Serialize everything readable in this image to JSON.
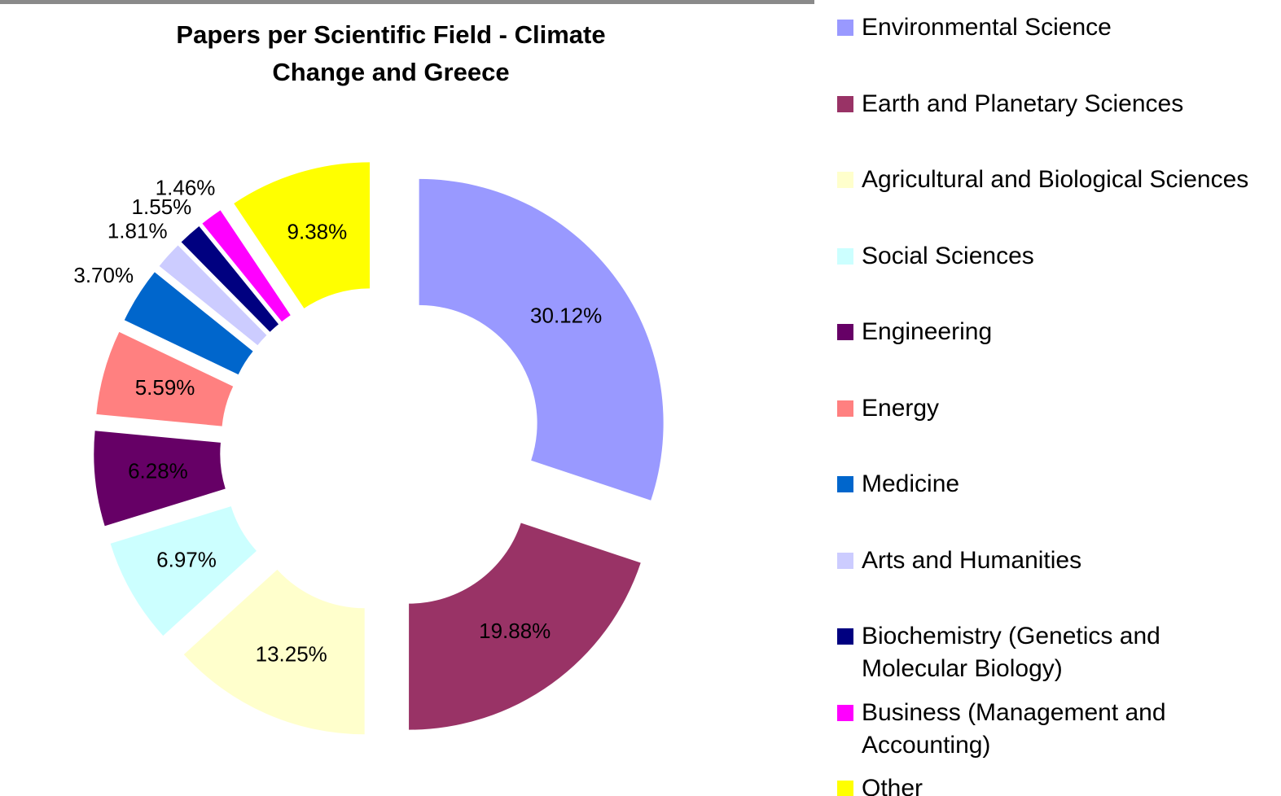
{
  "chart_data": {
    "type": "donut",
    "title": "Papers per Scientific Field - Climate Change and Greece",
    "categories": [
      "Environmental Science",
      "Earth and Planetary Sciences",
      "Agricultural and Biological Sciences",
      "Social Sciences",
      "Engineering",
      "Energy",
      "Medicine",
      "Arts and Humanities",
      "Biochemistry (Genetics and Molecular Biology)",
      "Business (Management and Accounting)",
      "Other"
    ],
    "values": [
      30.12,
      19.88,
      13.25,
      6.97,
      6.28,
      5.59,
      3.7,
      1.81,
      1.55,
      1.46,
      9.38
    ],
    "value_labels": [
      "30.12%",
      "19.88%",
      "13.25%",
      "6.97%",
      "6.28%",
      "5.59%",
      "3.70%",
      "1.81%",
      "1.55%",
      "1.46%",
      "9.38%"
    ],
    "colors": [
      "#9999ff",
      "#993366",
      "#ffffcc",
      "#ccffff",
      "#660066",
      "#ff8080",
      "#0066cc",
      "#ccccff",
      "#000080",
      "#ff00ff",
      "#ffff00"
    ],
    "legend": "right"
  }
}
